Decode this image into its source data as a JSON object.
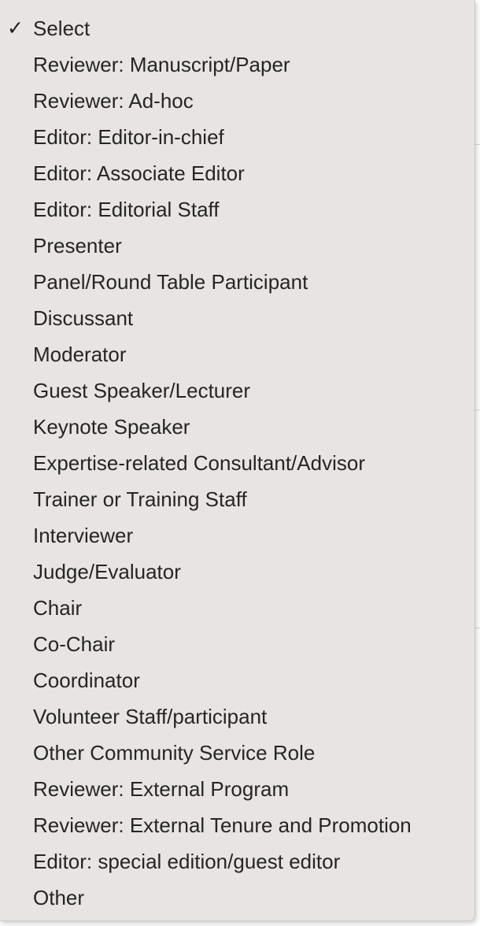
{
  "dropdown": {
    "selected_marker": "✓",
    "selected_index": 0,
    "options": [
      "Select",
      "Reviewer: Manuscript/Paper",
      "Reviewer: Ad-hoc",
      "Editor: Editor-in-chief",
      "Editor: Associate Editor",
      "Editor: Editorial Staff",
      "Presenter",
      "Panel/Round Table Participant",
      "Discussant",
      "Moderator",
      "Guest Speaker/Lecturer",
      "Keynote Speaker",
      "Expertise-related Consultant/Advisor",
      "Trainer or Training Staff",
      "Interviewer",
      "Judge/Evaluator",
      "Chair",
      "Co-Chair",
      "Coordinator",
      "Volunteer Staff/participant",
      "Other Community Service Role",
      "Reviewer: External Program",
      "Reviewer: External Tenure and Promotion",
      "Editor: special edition/guest editor",
      "Other"
    ]
  },
  "colors": {
    "menu_background": "#e9e4e4",
    "text": "#262424"
  }
}
